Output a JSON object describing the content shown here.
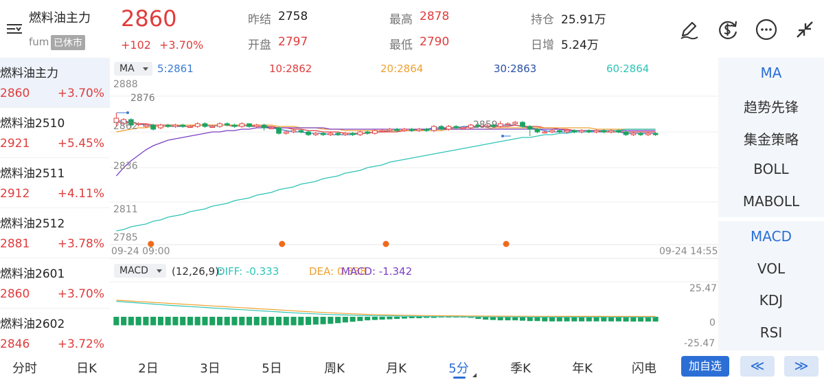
{
  "header": {
    "title": "燃料油主力",
    "code": "fum",
    "status_badge": "已休市",
    "price": "2860",
    "change_abs": "+102",
    "change_pct": "+3.70%",
    "stats": {
      "prev_settle_label": "昨结",
      "prev_settle": "2758",
      "open_label": "开盘",
      "open": "2797",
      "high_label": "最高",
      "high": "2878",
      "low_label": "最低",
      "low": "2790",
      "open_interest_label": "持仓",
      "open_interest": "25.91万",
      "daily_increase_label": "日增",
      "daily_increase": "5.24万"
    },
    "icons": [
      "edit-pen-icon",
      "currency-exchange-icon",
      "more-icon",
      "collapse-icon"
    ]
  },
  "contract_list": [
    {
      "name": "燃料油主力",
      "price": "2860",
      "change": "+3.70%"
    },
    {
      "name": "燃料油2510",
      "price": "2921",
      "change": "+5.45%"
    },
    {
      "name": "燃料油2511",
      "price": "2912",
      "change": "+4.11%"
    },
    {
      "name": "燃料油2512",
      "price": "2881",
      "change": "+3.78%"
    },
    {
      "name": "燃料油2601",
      "price": "2860",
      "change": "+3.70%"
    },
    {
      "name": "燃料油2602",
      "price": "2846",
      "change": "+3.72%"
    }
  ],
  "chart": {
    "ma_button": "MA",
    "ma_values": [
      {
        "label": "5:2861",
        "color": "#3a7bd5"
      },
      {
        "label": "10:2862",
        "color": "#e03c3c"
      },
      {
        "label": "20:2864",
        "color": "#f0a030"
      },
      {
        "label": "30:2863",
        "color": "#2a4fa8"
      },
      {
        "label": "60:2864",
        "color": "#2ec4b6"
      }
    ],
    "y_labels": [
      "2888",
      "2862",
      "2836",
      "2811",
      "2785"
    ],
    "high_mark": "2876",
    "low_mark": "2859",
    "time_start": "09-24 09:00",
    "time_end": "09-24 14:55",
    "macd_button": "MACD",
    "macd_params": "(12,26,9):",
    "macd_diff": "DIFF: -0.333",
    "macd_dea": "DEA: 0.338",
    "macd_value": "MACD: -1.342",
    "macd_top": "25.47",
    "macd_zero": "0",
    "macd_bottom": "-25.47",
    "colors": {
      "up": "#e03c3c",
      "down": "#1aa360",
      "ma5": "#3a7bd5",
      "ma10": "#e03c3c",
      "ma20": "#f0a030",
      "ma30": "#7b3fc4",
      "ma60": "#2ec4b6"
    }
  },
  "chart_data": {
    "type": "candlestick",
    "y_range": [
      2785,
      2888
    ],
    "candles": [
      {
        "o": 2869,
        "c": 2872,
        "h": 2876,
        "l": 2866
      },
      {
        "o": 2868,
        "c": 2871,
        "h": 2872,
        "l": 2866
      },
      {
        "o": 2871,
        "c": 2867,
        "h": 2872,
        "l": 2865
      },
      {
        "o": 2868,
        "c": 2868,
        "h": 2869,
        "l": 2866
      },
      {
        "o": 2866,
        "c": 2867,
        "h": 2868,
        "l": 2865
      },
      {
        "o": 2867,
        "c": 2864,
        "h": 2868,
        "l": 2863
      },
      {
        "o": 2865,
        "c": 2867,
        "h": 2868,
        "l": 2864
      },
      {
        "o": 2867,
        "c": 2866,
        "h": 2868,
        "l": 2865
      },
      {
        "o": 2866,
        "c": 2867,
        "h": 2868,
        "l": 2865
      },
      {
        "o": 2867,
        "c": 2866,
        "h": 2868,
        "l": 2865
      },
      {
        "o": 2866,
        "c": 2866,
        "h": 2867,
        "l": 2865
      },
      {
        "o": 2866,
        "c": 2868,
        "h": 2869,
        "l": 2865
      },
      {
        "o": 2868,
        "c": 2866,
        "h": 2869,
        "l": 2865
      },
      {
        "o": 2866,
        "c": 2866,
        "h": 2867,
        "l": 2865
      },
      {
        "o": 2866,
        "c": 2868,
        "h": 2869,
        "l": 2865
      },
      {
        "o": 2868,
        "c": 2867,
        "h": 2869,
        "l": 2866
      },
      {
        "o": 2867,
        "c": 2866,
        "h": 2868,
        "l": 2865
      },
      {
        "o": 2866,
        "c": 2868,
        "h": 2869,
        "l": 2865
      },
      {
        "o": 2868,
        "c": 2866,
        "h": 2868,
        "l": 2865
      },
      {
        "o": 2866,
        "c": 2867,
        "h": 2868,
        "l": 2865
      },
      {
        "o": 2867,
        "c": 2865,
        "h": 2868,
        "l": 2863
      },
      {
        "o": 2865,
        "c": 2865,
        "h": 2866,
        "l": 2864
      },
      {
        "o": 2865,
        "c": 2861,
        "h": 2866,
        "l": 2860
      },
      {
        "o": 2861,
        "c": 2862,
        "h": 2863,
        "l": 2860
      },
      {
        "o": 2862,
        "c": 2863,
        "h": 2864,
        "l": 2861
      },
      {
        "o": 2863,
        "c": 2862,
        "h": 2864,
        "l": 2861
      },
      {
        "o": 2862,
        "c": 2860,
        "h": 2863,
        "l": 2859
      },
      {
        "o": 2860,
        "c": 2861,
        "h": 2862,
        "l": 2859
      },
      {
        "o": 2861,
        "c": 2860,
        "h": 2862,
        "l": 2859
      },
      {
        "o": 2860,
        "c": 2861,
        "h": 2862,
        "l": 2859
      },
      {
        "o": 2861,
        "c": 2860,
        "h": 2862,
        "l": 2859
      },
      {
        "o": 2860,
        "c": 2861,
        "h": 2862,
        "l": 2859
      },
      {
        "o": 2861,
        "c": 2860,
        "h": 2862,
        "l": 2859
      },
      {
        "o": 2860,
        "c": 2862,
        "h": 2863,
        "l": 2859
      },
      {
        "o": 2862,
        "c": 2861,
        "h": 2863,
        "l": 2860
      },
      {
        "o": 2861,
        "c": 2863,
        "h": 2864,
        "l": 2860
      },
      {
        "o": 2863,
        "c": 2863,
        "h": 2864,
        "l": 2862
      },
      {
        "o": 2863,
        "c": 2864,
        "h": 2865,
        "l": 2862
      },
      {
        "o": 2864,
        "c": 2863,
        "h": 2865,
        "l": 2862
      },
      {
        "o": 2863,
        "c": 2864,
        "h": 2865,
        "l": 2862
      },
      {
        "o": 2864,
        "c": 2863,
        "h": 2865,
        "l": 2862
      },
      {
        "o": 2863,
        "c": 2864,
        "h": 2865,
        "l": 2862
      },
      {
        "o": 2864,
        "c": 2863,
        "h": 2865,
        "l": 2862
      },
      {
        "o": 2863,
        "c": 2866,
        "h": 2867,
        "l": 2862
      },
      {
        "o": 2866,
        "c": 2864,
        "h": 2867,
        "l": 2863
      },
      {
        "o": 2864,
        "c": 2866,
        "h": 2867,
        "l": 2863
      },
      {
        "o": 2866,
        "c": 2865,
        "h": 2867,
        "l": 2864
      },
      {
        "o": 2865,
        "c": 2865,
        "h": 2866,
        "l": 2864
      },
      {
        "o": 2865,
        "c": 2867,
        "h": 2868,
        "l": 2864
      },
      {
        "o": 2867,
        "c": 2866,
        "h": 2868,
        "l": 2865
      },
      {
        "o": 2866,
        "c": 2867,
        "h": 2868,
        "l": 2865
      },
      {
        "o": 2867,
        "c": 2866,
        "h": 2868,
        "l": 2865
      },
      {
        "o": 2866,
        "c": 2868,
        "h": 2870,
        "l": 2865
      },
      {
        "o": 2868,
        "c": 2868,
        "h": 2869,
        "l": 2867
      },
      {
        "o": 2868,
        "c": 2869,
        "h": 2870,
        "l": 2867
      },
      {
        "o": 2869,
        "c": 2866,
        "h": 2870,
        "l": 2865
      },
      {
        "o": 2866,
        "c": 2864,
        "h": 2867,
        "l": 2859
      },
      {
        "o": 2864,
        "c": 2862,
        "h": 2865,
        "l": 2861
      },
      {
        "o": 2862,
        "c": 2862,
        "h": 2863,
        "l": 2861
      },
      {
        "o": 2862,
        "c": 2863,
        "h": 2864,
        "l": 2861
      },
      {
        "o": 2863,
        "c": 2862,
        "h": 2864,
        "l": 2861
      },
      {
        "o": 2862,
        "c": 2863,
        "h": 2864,
        "l": 2861
      },
      {
        "o": 2863,
        "c": 2862,
        "h": 2864,
        "l": 2861
      },
      {
        "o": 2862,
        "c": 2863,
        "h": 2864,
        "l": 2861
      },
      {
        "o": 2863,
        "c": 2862,
        "h": 2864,
        "l": 2861
      },
      {
        "o": 2862,
        "c": 2863,
        "h": 2864,
        "l": 2861
      },
      {
        "o": 2863,
        "c": 2862,
        "h": 2864,
        "l": 2861
      },
      {
        "o": 2862,
        "c": 2863,
        "h": 2864,
        "l": 2861
      },
      {
        "o": 2863,
        "c": 2862,
        "h": 2864,
        "l": 2861
      },
      {
        "o": 2862,
        "c": 2860,
        "h": 2863,
        "l": 2859
      },
      {
        "o": 2860,
        "c": 2861,
        "h": 2862,
        "l": 2859
      },
      {
        "o": 2861,
        "c": 2860,
        "h": 2862,
        "l": 2859
      },
      {
        "o": 2860,
        "c": 2861,
        "h": 2862,
        "l": 2859
      },
      {
        "o": 2861,
        "c": 2860,
        "h": 2862,
        "l": 2859
      }
    ],
    "ma_lines": [
      {
        "name": "MA5",
        "values": [
          2870,
          2870,
          2869,
          2868,
          2867,
          2866,
          2866,
          2866,
          2866,
          2866,
          2866,
          2867,
          2867,
          2866,
          2867,
          2867,
          2866,
          2867,
          2866,
          2866,
          2866,
          2865,
          2864,
          2863,
          2862,
          2862,
          2861,
          2861,
          2861,
          2860,
          2860,
          2860,
          2860,
          2861,
          2861,
          2862,
          2862,
          2863,
          2863,
          2863,
          2863,
          2864,
          2864,
          2865,
          2865,
          2865,
          2865,
          2866,
          2866,
          2866,
          2866,
          2866,
          2867,
          2867,
          2867,
          2866,
          2865,
          2864,
          2863,
          2862,
          2862,
          2862,
          2862,
          2862,
          2862,
          2862,
          2862,
          2862,
          2862,
          2861,
          2861,
          2861,
          2861,
          2861
        ]
      },
      {
        "name": "MA10",
        "values": [
          2869,
          2869,
          2869,
          2868,
          2868,
          2867,
          2867,
          2867,
          2867,
          2866,
          2866,
          2867,
          2867,
          2867,
          2867,
          2867,
          2866,
          2867,
          2867,
          2866,
          2866,
          2866,
          2865,
          2865,
          2864,
          2864,
          2863,
          2863,
          2862,
          2862,
          2862,
          2861,
          2861,
          2861,
          2861,
          2862,
          2862,
          2862,
          2862,
          2863,
          2863,
          2863,
          2864,
          2864,
          2864,
          2865,
          2865,
          2865,
          2866,
          2866,
          2866,
          2866,
          2866,
          2866,
          2867,
          2866,
          2866,
          2866,
          2865,
          2865,
          2864,
          2864,
          2863,
          2863,
          2863,
          2863,
          2862,
          2862,
          2862,
          2862,
          2862,
          2862,
          2862,
          2862
        ]
      },
      {
        "name": "MA20",
        "values": [
          2862,
          2863,
          2864,
          2865,
          2865,
          2866,
          2866,
          2866,
          2867,
          2867,
          2867,
          2867,
          2867,
          2867,
          2867,
          2867,
          2867,
          2867,
          2867,
          2867,
          2867,
          2867,
          2866,
          2866,
          2866,
          2865,
          2865,
          2865,
          2864,
          2864,
          2864,
          2863,
          2863,
          2863,
          2863,
          2863,
          2863,
          2863,
          2863,
          2863,
          2863,
          2863,
          2863,
          2863,
          2863,
          2864,
          2864,
          2864,
          2864,
          2864,
          2864,
          2865,
          2865,
          2865,
          2865,
          2865,
          2865,
          2865,
          2865,
          2865,
          2865,
          2865,
          2865,
          2865,
          2865,
          2864,
          2864,
          2864,
          2864,
          2864,
          2864,
          2864,
          2864,
          2864
        ]
      },
      {
        "name": "MA30",
        "values": [
          2830,
          2836,
          2841,
          2845,
          2849,
          2852,
          2854,
          2856,
          2857,
          2858,
          2859,
          2860,
          2861,
          2862,
          2862,
          2863,
          2863,
          2864,
          2864,
          2865,
          2865,
          2865,
          2865,
          2865,
          2865,
          2865,
          2865,
          2865,
          2865,
          2864,
          2864,
          2864,
          2864,
          2864,
          2864,
          2864,
          2864,
          2864,
          2864,
          2864,
          2864,
          2864,
          2864,
          2864,
          2864,
          2864,
          2864,
          2864,
          2864,
          2864,
          2864,
          2864,
          2864,
          2864,
          2864,
          2864,
          2864,
          2864,
          2864,
          2864,
          2864,
          2863,
          2863,
          2863,
          2863,
          2863,
          2863,
          2863,
          2863,
          2863,
          2863,
          2863,
          2863,
          2863
        ]
      },
      {
        "name": "MA60",
        "values": [
          2790,
          2791,
          2793,
          2794,
          2795,
          2797,
          2798,
          2800,
          2801,
          2802,
          2804,
          2805,
          2806,
          2808,
          2809,
          2810,
          2812,
          2813,
          2814,
          2816,
          2817,
          2818,
          2820,
          2821,
          2822,
          2824,
          2825,
          2826,
          2828,
          2829,
          2830,
          2832,
          2833,
          2834,
          2836,
          2837,
          2838,
          2840,
          2841,
          2842,
          2843,
          2844,
          2845,
          2846,
          2847,
          2848,
          2849,
          2850,
          2851,
          2852,
          2853,
          2854,
          2855,
          2856,
          2857,
          2858,
          2858,
          2859,
          2860,
          2860,
          2861,
          2861,
          2862,
          2862,
          2862,
          2863,
          2863,
          2863,
          2863,
          2864,
          2864,
          2864,
          2864,
          2864
        ]
      }
    ],
    "macd_range": [
      -25.47,
      25.47
    ],
    "diff": [
      14,
      13.5,
      13,
      12.5,
      12,
      11.5,
      11,
      10.5,
      10,
      9.6,
      9.2,
      8.8,
      8.4,
      8,
      7.6,
      7.2,
      6.8,
      6.4,
      6,
      5.6,
      5.2,
      4.8,
      4.4,
      4,
      3.6,
      3.2,
      2.9,
      2.6,
      2.3,
      2,
      1.8,
      1.6,
      1.4,
      1.2,
      1,
      0.9,
      0.8,
      0.7,
      0.6,
      0.5,
      0.4,
      0.3,
      0.25,
      0.2,
      0.15,
      0.1,
      0.05,
      0,
      -0.05,
      -0.1,
      -0.15,
      -0.2,
      -0.2,
      -0.2,
      -0.25,
      -0.25,
      -0.3,
      -0.3,
      -0.3,
      -0.3,
      -0.3,
      -0.3,
      -0.3,
      -0.33,
      -0.33,
      -0.33,
      -0.33,
      -0.33,
      -0.33,
      -0.33,
      -0.33,
      -0.33,
      -0.33,
      -0.333
    ],
    "dea": [
      15,
      14.6,
      14.2,
      13.8,
      13.4,
      13,
      12.6,
      12.2,
      11.8,
      11.4,
      11,
      10.6,
      10.2,
      9.8,
      9.4,
      9,
      8.6,
      8.2,
      7.8,
      7.4,
      7,
      6.6,
      6.2,
      5.8,
      5.4,
      5,
      4.6,
      4.2,
      3.9,
      3.6,
      3.3,
      3,
      2.7,
      2.4,
      2.2,
      2,
      1.8,
      1.6,
      1.5,
      1.4,
      1.3,
      1.2,
      1.1,
      1,
      0.95,
      0.9,
      0.85,
      0.8,
      0.75,
      0.7,
      0.65,
      0.6,
      0.58,
      0.55,
      0.52,
      0.5,
      0.48,
      0.46,
      0.44,
      0.42,
      0.4,
      0.39,
      0.38,
      0.37,
      0.36,
      0.35,
      0.35,
      0.34,
      0.34,
      0.34,
      0.34,
      0.338,
      0.338,
      0.338
    ],
    "macd_bars": [
      -2.4,
      -2.4,
      -2.4,
      -2.4,
      -2.4,
      -2.4,
      -2.4,
      -2.4,
      -2.4,
      -2.4,
      -2.4,
      -2.4,
      -2.4,
      -2.4,
      -2.4,
      -2.4,
      -2.4,
      -2.4,
      -2.4,
      -2.4,
      -2.4,
      -2.4,
      -2.4,
      -2.4,
      -2.4,
      -2.4,
      -2.3,
      -2.2,
      -2.1,
      -2,
      -1.8,
      -1.6,
      -1.4,
      -1.2,
      -1.0,
      -0.9,
      -0.8,
      -0.7,
      -0.6,
      -0.5,
      -0.4,
      -0.4,
      -0.3,
      -0.3,
      -0.2,
      -0.2,
      -0.2,
      -0.2,
      -0.3,
      -0.6,
      -0.8,
      -0.9,
      -1.0,
      -1.0,
      -1.0,
      -1.1,
      -1.2,
      -1.2,
      -1.3,
      -1.3,
      -1.3,
      -1.3,
      -1.3,
      -1.3,
      -1.3,
      -1.3,
      -1.3,
      -1.3,
      -1.3,
      -1.34,
      -1.34,
      -1.34,
      -1.34,
      -1.342
    ],
    "markers_x_fraction": [
      0.07,
      0.31,
      0.5,
      0.72
    ]
  },
  "indicators_main": [
    "MA",
    "趋势先锋",
    "集金策略",
    "BOLL",
    "MABOLL"
  ],
  "indicators_sub": [
    "MACD",
    "VOL",
    "KDJ",
    "RSI"
  ],
  "bottom_tabs": [
    "分时",
    "日K",
    "2日",
    "3日",
    "5日",
    "周K",
    "月K",
    "5分",
    "季K",
    "年K",
    "闪电"
  ],
  "active_tab": "5分",
  "add_watchlist": "加自选",
  "nav_prev": "≪",
  "nav_next": "≫"
}
